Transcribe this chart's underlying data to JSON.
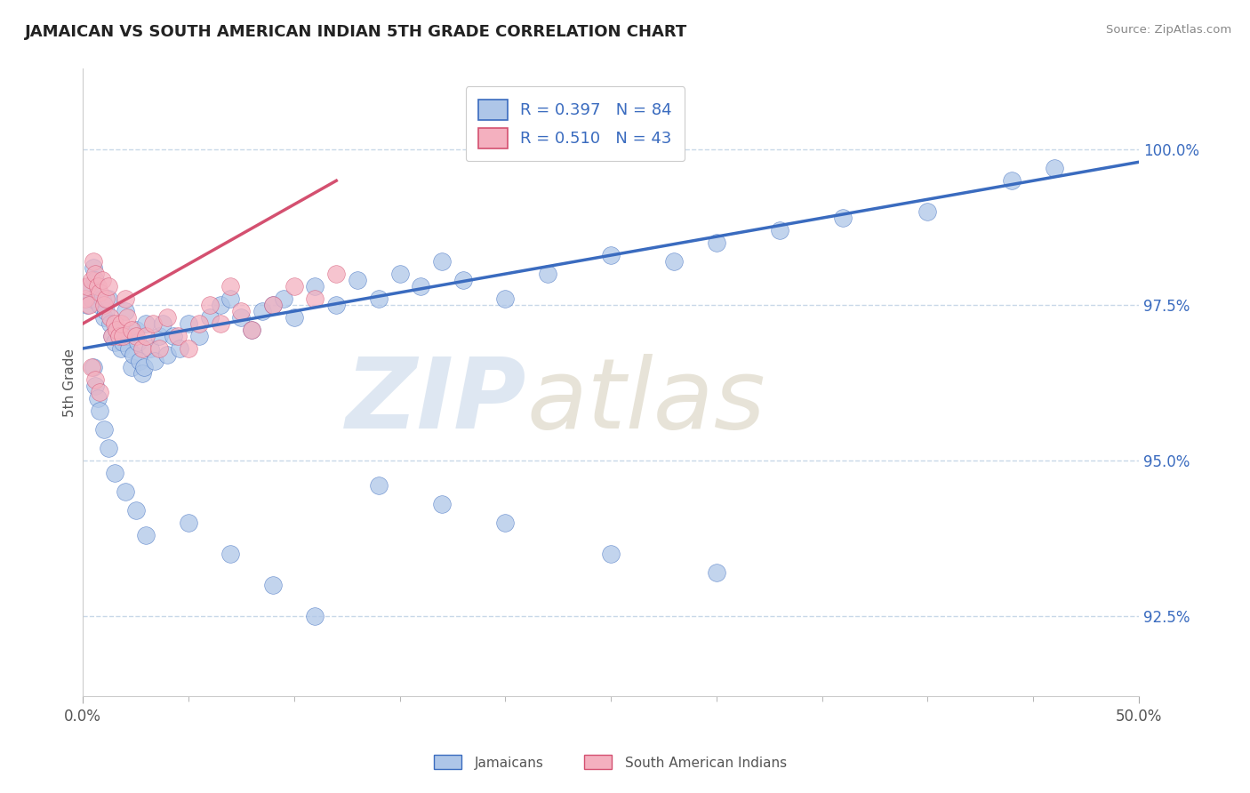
{
  "title": "JAMAICAN VS SOUTH AMERICAN INDIAN 5TH GRADE CORRELATION CHART",
  "source": "Source: ZipAtlas.com",
  "ylabel": "5th Grade",
  "xlim": [
    0.0,
    50.0
  ],
  "ylim": [
    91.2,
    101.3
  ],
  "yticks": [
    92.5,
    95.0,
    97.5,
    100.0
  ],
  "ytick_labels": [
    "92.5%",
    "95.0%",
    "97.5%",
    "100.0%"
  ],
  "blue_R": "0.397",
  "blue_N": "84",
  "pink_R": "0.510",
  "pink_N": "43",
  "blue_color": "#aec6e8",
  "pink_color": "#f4b0bf",
  "blue_line_color": "#3a6bbf",
  "pink_line_color": "#d45070",
  "text_color": "#3a6bbf",
  "grid_color": "#c8d8e8",
  "blue_trend_x0": 0,
  "blue_trend_y0": 96.8,
  "blue_trend_x1": 50,
  "blue_trend_y1": 99.8,
  "pink_trend_x0": 0,
  "pink_trend_y0": 97.2,
  "pink_trend_x1": 12,
  "pink_trend_y1": 99.5,
  "blue_scatter_x": [
    0.2,
    0.3,
    0.4,
    0.5,
    0.6,
    0.7,
    0.8,
    0.9,
    1.0,
    1.1,
    1.2,
    1.3,
    1.4,
    1.5,
    1.6,
    1.7,
    1.8,
    1.9,
    2.0,
    2.1,
    2.2,
    2.3,
    2.4,
    2.5,
    2.6,
    2.7,
    2.8,
    2.9,
    3.0,
    3.2,
    3.4,
    3.6,
    3.8,
    4.0,
    4.3,
    4.6,
    5.0,
    5.5,
    6.0,
    6.5,
    7.0,
    7.5,
    8.0,
    8.5,
    9.0,
    9.5,
    10.0,
    11.0,
    12.0,
    13.0,
    14.0,
    15.0,
    16.0,
    17.0,
    18.0,
    20.0,
    22.0,
    25.0,
    28.0,
    30.0,
    33.0,
    36.0,
    40.0,
    44.0,
    46.0,
    0.5,
    0.6,
    0.7,
    0.8,
    1.0,
    1.2,
    1.5,
    2.0,
    2.5,
    3.0,
    5.0,
    7.0,
    9.0,
    11.0,
    14.0,
    17.0,
    20.0,
    25.0,
    30.0
  ],
  "blue_scatter_y": [
    97.5,
    97.8,
    97.6,
    98.1,
    97.9,
    97.7,
    97.5,
    97.6,
    97.3,
    97.4,
    97.6,
    97.2,
    97.0,
    96.9,
    97.1,
    97.0,
    96.8,
    96.9,
    97.4,
    97.0,
    96.8,
    96.5,
    96.7,
    97.1,
    96.9,
    96.6,
    96.4,
    96.5,
    97.2,
    96.8,
    96.6,
    97.0,
    97.2,
    96.7,
    97.0,
    96.8,
    97.2,
    97.0,
    97.3,
    97.5,
    97.6,
    97.3,
    97.1,
    97.4,
    97.5,
    97.6,
    97.3,
    97.8,
    97.5,
    97.9,
    97.6,
    98.0,
    97.8,
    98.2,
    97.9,
    97.6,
    98.0,
    98.3,
    98.2,
    98.5,
    98.7,
    98.9,
    99.0,
    99.5,
    99.7,
    96.5,
    96.2,
    96.0,
    95.8,
    95.5,
    95.2,
    94.8,
    94.5,
    94.2,
    93.8,
    94.0,
    93.5,
    93.0,
    92.5,
    94.6,
    94.3,
    94.0,
    93.5,
    93.2
  ],
  "pink_scatter_x": [
    0.1,
    0.2,
    0.3,
    0.4,
    0.5,
    0.6,
    0.7,
    0.8,
    0.9,
    1.0,
    1.1,
    1.2,
    1.3,
    1.4,
    1.5,
    1.6,
    1.7,
    1.8,
    1.9,
    2.0,
    2.1,
    2.3,
    2.5,
    2.8,
    3.0,
    3.3,
    3.6,
    4.0,
    4.5,
    5.0,
    5.5,
    6.0,
    6.5,
    7.0,
    7.5,
    8.0,
    9.0,
    10.0,
    11.0,
    12.0,
    0.4,
    0.6,
    0.8
  ],
  "pink_scatter_y": [
    97.6,
    97.8,
    97.5,
    97.9,
    98.2,
    98.0,
    97.8,
    97.7,
    97.9,
    97.5,
    97.6,
    97.8,
    97.3,
    97.0,
    97.2,
    97.1,
    97.0,
    97.2,
    97.0,
    97.6,
    97.3,
    97.1,
    97.0,
    96.8,
    97.0,
    97.2,
    96.8,
    97.3,
    97.0,
    96.8,
    97.2,
    97.5,
    97.2,
    97.8,
    97.4,
    97.1,
    97.5,
    97.8,
    97.6,
    98.0,
    96.5,
    96.3,
    96.1
  ]
}
